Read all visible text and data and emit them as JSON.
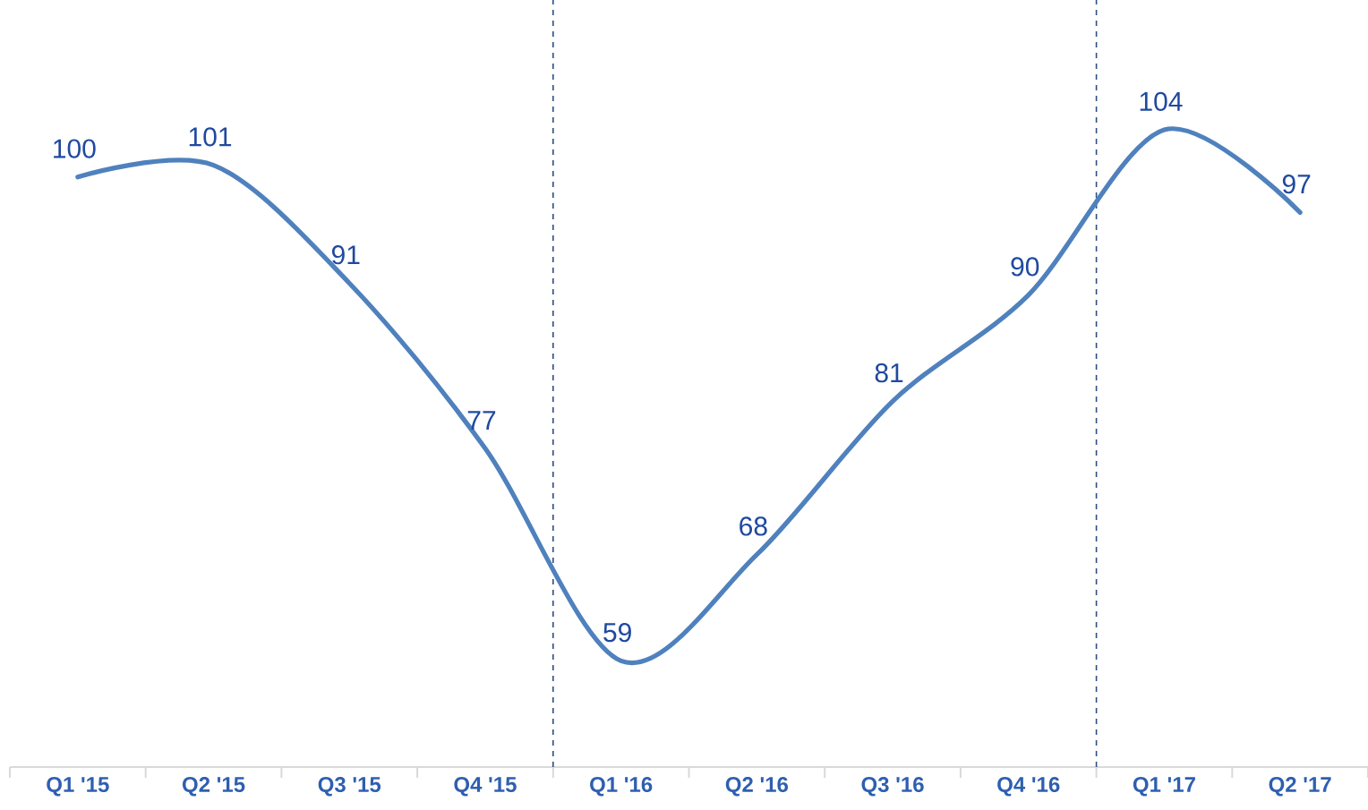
{
  "chart_data": {
    "type": "line",
    "categories": [
      "Q1 '15",
      "Q2 '15",
      "Q3 '15",
      "Q4 '15",
      "Q1 '16",
      "Q2 '16",
      "Q3 '16",
      "Q4 '16",
      "Q1 '17",
      "Q2 '17"
    ],
    "values": [
      100,
      101,
      91,
      77,
      59,
      68,
      81,
      90,
      104,
      97
    ],
    "color": "#4f81bd",
    "data_labels": true,
    "ylim": [
      50,
      115
    ],
    "marker": "none",
    "line_style": "solid"
  }
}
